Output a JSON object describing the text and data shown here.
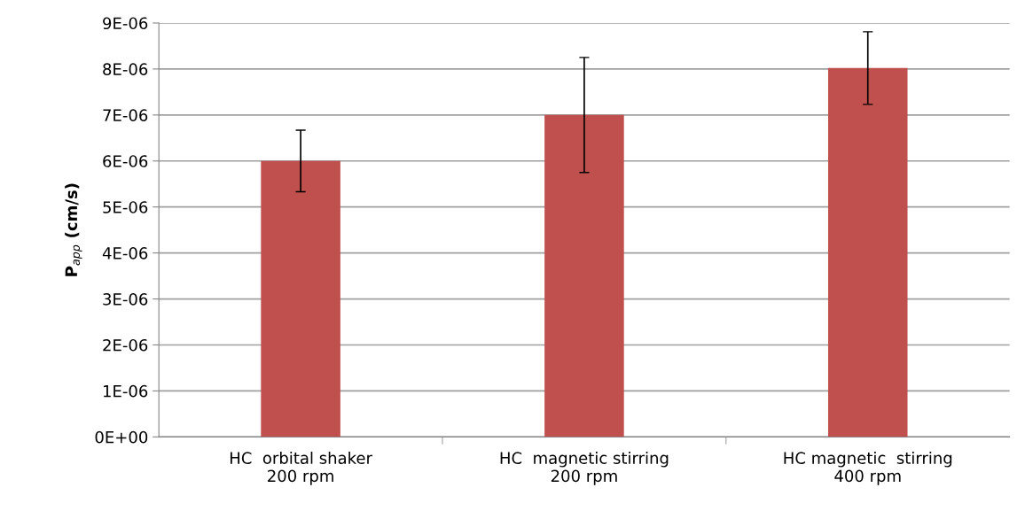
{
  "chart_data": {
    "type": "bar",
    "ylabel": "P$_{app}$ (cm/s)",
    "categories": [
      "HC  orbital shaker\n200 rpm",
      "HC  magnetic stirring\n200 rpm",
      "HC magnetic  stirring\n400 rpm"
    ],
    "series": [
      {
        "color": "#c0504d",
        "values": [
          6e-06,
          7e-06,
          8.02e-06
        ],
        "errors": [
          6.7e-07,
          1.25e-06,
          7.9e-07
        ]
      }
    ],
    "ylim": [
      0,
      9e-06
    ],
    "yticks": [
      {
        "value": 0,
        "label": "0E+00"
      },
      {
        "value": 1e-06,
        "label": "1E-06"
      },
      {
        "value": 2e-06,
        "label": "2E-06"
      },
      {
        "value": 3e-06,
        "label": "3E-06"
      },
      {
        "value": 4e-06,
        "label": "4E-06"
      },
      {
        "value": 5e-06,
        "label": "5E-06"
      },
      {
        "value": 6e-06,
        "label": "6E-06"
      },
      {
        "value": 7e-06,
        "label": "7E-06"
      },
      {
        "value": 8e-06,
        "label": "8E-06"
      },
      {
        "value": 9e-06,
        "label": "9E-06"
      }
    ],
    "grid": "y"
  }
}
